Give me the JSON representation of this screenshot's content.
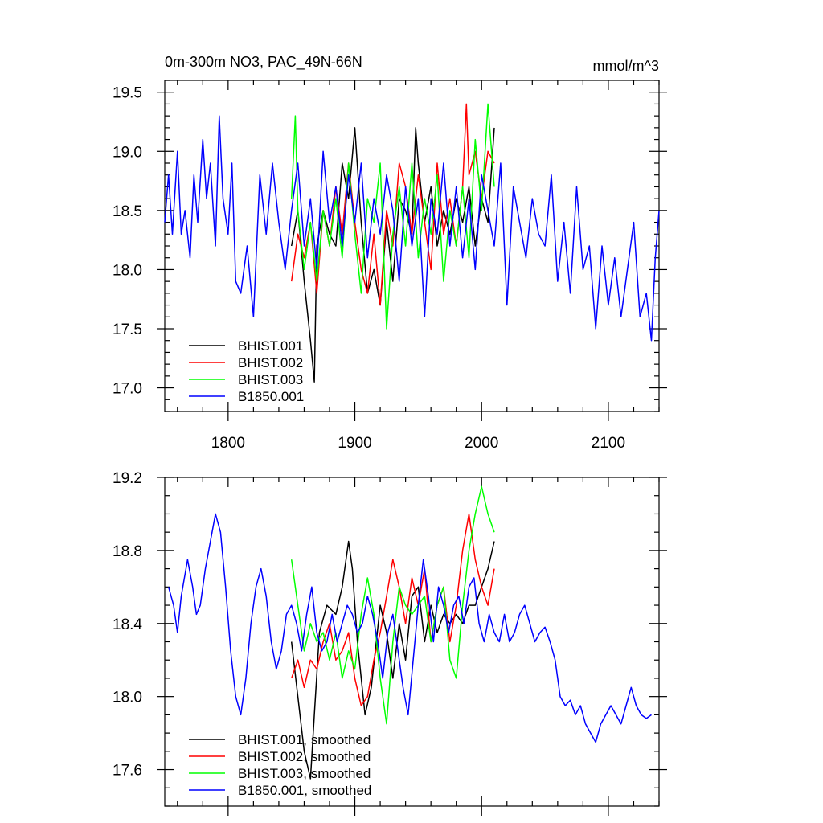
{
  "chart_data": [
    {
      "type": "line",
      "title": "0m-300m NO3, PAC_49N-66N",
      "units": "mmol/m^3",
      "xlim": [
        1750,
        2140
      ],
      "ylim": [
        16.8,
        19.6
      ],
      "xticks": [
        1800,
        1900,
        2000,
        2100
      ],
      "yticks": [
        17.0,
        17.5,
        18.0,
        18.5,
        19.0,
        19.5
      ],
      "ytick_labels": [
        "17.0",
        "17.5",
        "18.0",
        "18.5",
        "19.0",
        "19.5"
      ],
      "xtick_labels": [
        "1800",
        "1900",
        "2000",
        "2100"
      ],
      "legend_position": "bottom-left",
      "series": [
        {
          "name": "BHIST.001",
          "color": "#000000",
          "x": [
            1850,
            1855,
            1860,
            1865,
            1868,
            1870,
            1875,
            1880,
            1885,
            1890,
            1895,
            1900,
            1905,
            1910,
            1915,
            1920,
            1925,
            1930,
            1935,
            1940,
            1945,
            1948,
            1950,
            1955,
            1960,
            1965,
            1970,
            1975,
            1980,
            1985,
            1990,
            1995,
            2000,
            2005,
            2010
          ],
          "y": [
            18.2,
            18.5,
            17.9,
            17.4,
            17.05,
            18.2,
            18.5,
            18.3,
            18.2,
            18.9,
            18.6,
            19.2,
            18.4,
            17.8,
            18.0,
            17.7,
            18.4,
            17.9,
            18.6,
            18.5,
            18.3,
            19.2,
            18.9,
            18.4,
            18.7,
            18.2,
            18.5,
            18.3,
            18.6,
            18.4,
            18.7,
            18.2,
            18.6,
            18.4,
            19.2
          ]
        },
        {
          "name": "BHIST.002",
          "color": "#ff0000",
          "x": [
            1850,
            1855,
            1860,
            1865,
            1870,
            1875,
            1880,
            1885,
            1890,
            1895,
            1900,
            1905,
            1910,
            1915,
            1920,
            1925,
            1930,
            1935,
            1940,
            1945,
            1950,
            1955,
            1960,
            1965,
            1970,
            1975,
            1980,
            1985,
            1988,
            1990,
            1995,
            2000,
            2005,
            2010
          ],
          "y": [
            17.9,
            18.3,
            18.1,
            18.4,
            17.8,
            18.5,
            18.2,
            18.7,
            18.3,
            18.9,
            18.4,
            18.0,
            17.8,
            18.3,
            17.7,
            18.5,
            18.2,
            18.9,
            18.7,
            18.3,
            18.8,
            18.4,
            18.0,
            18.9,
            18.3,
            18.6,
            18.2,
            18.7,
            19.4,
            18.8,
            19.0,
            18.6,
            19.0,
            18.9
          ]
        },
        {
          "name": "BHIST.003",
          "color": "#00ff00",
          "x": [
            1850,
            1853,
            1855,
            1860,
            1865,
            1870,
            1875,
            1880,
            1885,
            1890,
            1895,
            1900,
            1905,
            1910,
            1915,
            1920,
            1925,
            1930,
            1935,
            1940,
            1945,
            1950,
            1955,
            1960,
            1965,
            1970,
            1975,
            1980,
            1985,
            1990,
            1995,
            2000,
            2005,
            2010
          ],
          "y": [
            18.6,
            19.3,
            18.5,
            18.0,
            18.4,
            17.9,
            18.5,
            18.2,
            18.6,
            18.1,
            18.9,
            18.3,
            17.8,
            18.6,
            18.4,
            18.9,
            17.5,
            18.3,
            18.7,
            18.2,
            18.9,
            18.1,
            18.6,
            18.3,
            18.8,
            17.9,
            18.5,
            18.2,
            18.7,
            18.1,
            19.1,
            18.5,
            19.4,
            18.7
          ]
        },
        {
          "name": "B1850.001",
          "color": "#0000ff",
          "x": [
            1750,
            1753,
            1756,
            1760,
            1763,
            1766,
            1770,
            1773,
            1776,
            1780,
            1783,
            1786,
            1790,
            1793,
            1796,
            1800,
            1803,
            1806,
            1810,
            1815,
            1820,
            1825,
            1830,
            1835,
            1840,
            1845,
            1850,
            1855,
            1860,
            1865,
            1870,
            1875,
            1880,
            1885,
            1890,
            1895,
            1900,
            1905,
            1910,
            1915,
            1920,
            1925,
            1930,
            1935,
            1940,
            1945,
            1950,
            1955,
            1960,
            1965,
            1970,
            1975,
            1980,
            1985,
            1990,
            1995,
            2000,
            2005,
            2010,
            2015,
            2020,
            2025,
            2030,
            2035,
            2040,
            2045,
            2050,
            2055,
            2060,
            2065,
            2070,
            2075,
            2080,
            2085,
            2090,
            2095,
            2100,
            2105,
            2110,
            2115,
            2120,
            2125,
            2130,
            2134,
            2137,
            2140
          ],
          "y": [
            18.4,
            18.8,
            18.3,
            19.0,
            18.3,
            18.5,
            18.1,
            18.8,
            18.4,
            19.1,
            18.6,
            18.9,
            18.2,
            19.3,
            18.6,
            18.3,
            18.9,
            17.9,
            17.8,
            18.2,
            17.6,
            18.8,
            18.3,
            18.9,
            18.4,
            18.0,
            18.5,
            18.9,
            18.2,
            18.6,
            18.0,
            19.0,
            18.4,
            18.7,
            18.2,
            18.8,
            18.4,
            18.9,
            18.1,
            18.6,
            18.3,
            18.8,
            18.5,
            17.9,
            18.7,
            18.2,
            18.6,
            17.6,
            18.6,
            18.3,
            18.9,
            18.2,
            18.7,
            18.1,
            18.6,
            18.0,
            18.8,
            18.5,
            18.2,
            18.9,
            17.7,
            18.7,
            18.4,
            18.1,
            18.6,
            18.3,
            18.2,
            18.8,
            17.9,
            18.4,
            17.8,
            18.7,
            18.0,
            18.2,
            17.5,
            18.2,
            17.7,
            18.1,
            17.6,
            18.0,
            18.4,
            17.6,
            17.8,
            17.4,
            18.1,
            18.5
          ]
        }
      ]
    },
    {
      "type": "line",
      "xlim": [
        1750,
        2140
      ],
      "ylim": [
        17.4,
        19.2
      ],
      "xticks": [
        1800,
        1900,
        2000,
        2100
      ],
      "yticks": [
        17.6,
        18.0,
        18.4,
        18.8,
        19.2
      ],
      "ytick_labels": [
        "17.6",
        "18.0",
        "18.4",
        "18.8",
        "19.2"
      ],
      "legend_position": "bottom-left",
      "series": [
        {
          "name": "BHIST.001, smoothed",
          "color": "#000000",
          "x": [
            1850,
            1855,
            1860,
            1865,
            1868,
            1872,
            1878,
            1885,
            1890,
            1895,
            1898,
            1902,
            1908,
            1913,
            1920,
            1925,
            1930,
            1935,
            1940,
            1945,
            1950,
            1955,
            1960,
            1965,
            1970,
            1975,
            1980,
            1985,
            1990,
            1995,
            2000,
            2005,
            2010
          ],
          "y": [
            18.3,
            18.0,
            17.7,
            17.55,
            17.9,
            18.35,
            18.5,
            18.45,
            18.6,
            18.85,
            18.7,
            18.3,
            17.9,
            18.05,
            18.5,
            18.35,
            18.1,
            18.4,
            18.2,
            18.55,
            18.6,
            18.3,
            18.5,
            18.35,
            18.45,
            18.4,
            18.45,
            18.4,
            18.5,
            18.5,
            18.6,
            18.7,
            18.85
          ]
        },
        {
          "name": "BHIST.002, smoothed",
          "color": "#ff0000",
          "x": [
            1850,
            1855,
            1860,
            1865,
            1870,
            1875,
            1880,
            1885,
            1890,
            1895,
            1900,
            1905,
            1910,
            1915,
            1920,
            1925,
            1930,
            1935,
            1940,
            1945,
            1950,
            1955,
            1960,
            1965,
            1970,
            1975,
            1980,
            1985,
            1990,
            1995,
            2000,
            2005,
            2010
          ],
          "y": [
            18.1,
            18.2,
            18.05,
            18.2,
            18.15,
            18.3,
            18.4,
            18.2,
            18.25,
            18.35,
            18.1,
            17.95,
            18.0,
            18.2,
            18.35,
            18.55,
            18.75,
            18.6,
            18.4,
            18.65,
            18.5,
            18.7,
            18.3,
            18.5,
            18.6,
            18.3,
            18.5,
            18.8,
            19.0,
            18.75,
            18.6,
            18.5,
            18.7
          ]
        },
        {
          "name": "BHIST.003, smoothed",
          "color": "#00ff00",
          "x": [
            1850,
            1855,
            1860,
            1865,
            1870,
            1875,
            1880,
            1885,
            1890,
            1895,
            1900,
            1905,
            1910,
            1915,
            1920,
            1925,
            1930,
            1935,
            1940,
            1945,
            1950,
            1955,
            1960,
            1965,
            1970,
            1975,
            1980,
            1985,
            1990,
            1995,
            2000,
            2005,
            2010
          ],
          "y": [
            18.75,
            18.5,
            18.25,
            18.4,
            18.3,
            18.35,
            18.2,
            18.35,
            18.1,
            18.25,
            18.15,
            18.45,
            18.65,
            18.45,
            18.1,
            17.85,
            18.3,
            18.6,
            18.5,
            18.45,
            18.5,
            18.55,
            18.3,
            18.5,
            18.6,
            18.2,
            18.1,
            18.5,
            18.8,
            19.0,
            19.15,
            19.0,
            18.9
          ]
        },
        {
          "name": "B1850.001, smoothed",
          "color": "#0000ff",
          "x": [
            1753,
            1757,
            1760,
            1763,
            1768,
            1772,
            1775,
            1778,
            1782,
            1786,
            1790,
            1794,
            1798,
            1802,
            1806,
            1810,
            1814,
            1818,
            1822,
            1826,
            1830,
            1834,
            1838,
            1842,
            1846,
            1850,
            1854,
            1858,
            1862,
            1866,
            1870,
            1874,
            1878,
            1882,
            1886,
            1890,
            1894,
            1898,
            1902,
            1906,
            1910,
            1914,
            1918,
            1922,
            1926,
            1930,
            1934,
            1938,
            1942,
            1946,
            1950,
            1954,
            1958,
            1962,
            1966,
            1970,
            1974,
            1978,
            1982,
            1986,
            1990,
            1994,
            1998,
            2002,
            2006,
            2010,
            2014,
            2018,
            2022,
            2026,
            2030,
            2034,
            2038,
            2042,
            2046,
            2050,
            2054,
            2058,
            2062,
            2066,
            2070,
            2074,
            2078,
            2082,
            2086,
            2090,
            2094,
            2098,
            2102,
            2106,
            2110,
            2114,
            2118,
            2122,
            2126,
            2130,
            2134
          ],
          "y": [
            18.6,
            18.5,
            18.35,
            18.55,
            18.75,
            18.6,
            18.45,
            18.5,
            18.7,
            18.85,
            19.0,
            18.9,
            18.6,
            18.25,
            18.0,
            17.9,
            18.1,
            18.4,
            18.6,
            18.7,
            18.55,
            18.3,
            18.15,
            18.25,
            18.45,
            18.5,
            18.4,
            18.25,
            18.45,
            18.6,
            18.35,
            18.25,
            18.3,
            18.45,
            18.3,
            18.4,
            18.5,
            18.45,
            18.35,
            18.4,
            18.55,
            18.45,
            18.3,
            18.1,
            18.35,
            18.45,
            18.25,
            18.05,
            17.9,
            18.2,
            18.5,
            18.75,
            18.55,
            18.3,
            18.6,
            18.5,
            18.35,
            18.5,
            18.55,
            18.4,
            18.6,
            18.65,
            18.4,
            18.3,
            18.45,
            18.35,
            18.3,
            18.45,
            18.3,
            18.35,
            18.45,
            18.5,
            18.4,
            18.3,
            18.35,
            18.38,
            18.3,
            18.2,
            18.0,
            17.95,
            17.98,
            17.9,
            17.95,
            17.85,
            17.8,
            17.75,
            17.85,
            17.9,
            17.95,
            17.9,
            17.85,
            17.95,
            18.05,
            17.95,
            17.9,
            17.88,
            17.9
          ]
        }
      ]
    }
  ]
}
